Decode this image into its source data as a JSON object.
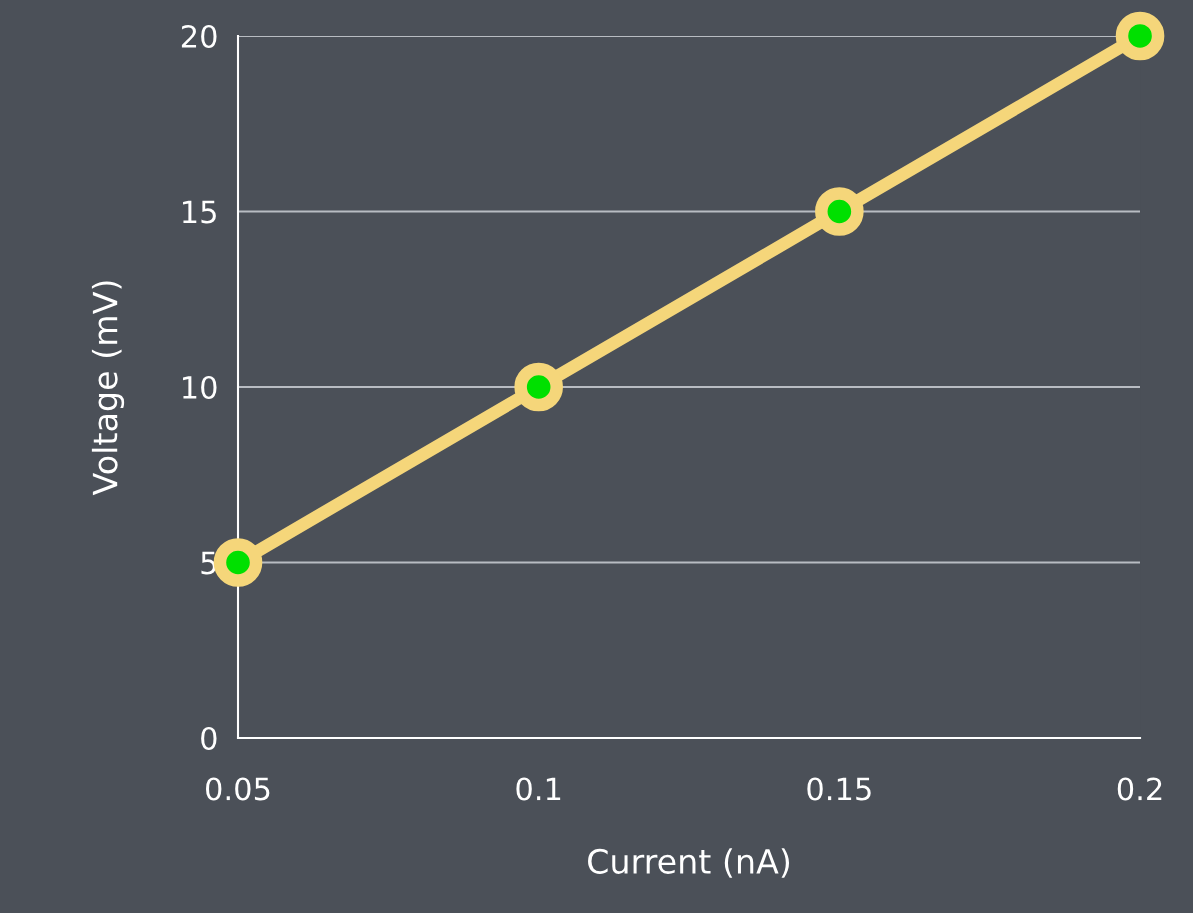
{
  "chart_data": {
    "type": "line",
    "xlabel": "Current (nA)",
    "ylabel": "Voltage (mV)",
    "x": [
      0.05,
      0.1,
      0.15,
      0.2
    ],
    "series": [
      {
        "color": "#f5d67a",
        "values": [
          5,
          10,
          15,
          20
        ]
      }
    ],
    "xlim": [
      0.05,
      0.2
    ],
    "xticks": [
      0.05,
      0.1,
      0.15,
      0.2
    ],
    "ylim": [
      0,
      20
    ],
    "yticks": [
      0,
      5,
      10,
      15,
      20
    ],
    "grid": "y",
    "marker": "circle",
    "line_style": "solid"
  }
}
